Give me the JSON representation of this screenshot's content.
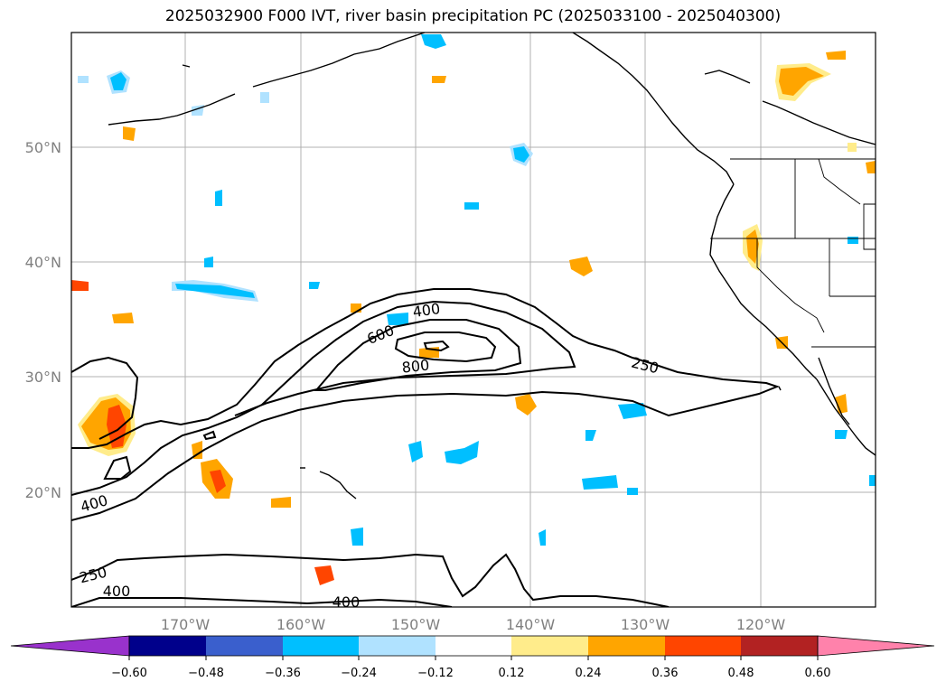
{
  "title": "2025032900 F000 IVT, river basin precipitation PC (2025033100 - 2025040300)",
  "map": {
    "lat_ticks": [
      {
        "label": "50°N",
        "lat": 50
      },
      {
        "label": "40°N",
        "lat": 40
      },
      {
        "label": "30°N",
        "lat": 30
      },
      {
        "label": "20°N",
        "lat": 20
      }
    ],
    "lon_ticks": [
      {
        "label": "170°W",
        "lon": -170
      },
      {
        "label": "160°W",
        "lon": -160
      },
      {
        "label": "150°W",
        "lon": -150
      },
      {
        "label": "140°W",
        "lon": -140
      },
      {
        "label": "130°W",
        "lon": -130
      },
      {
        "label": "120°W",
        "lon": -120
      }
    ],
    "contour_labels": [
      "400",
      "600",
      "800",
      "250",
      "400",
      "250",
      "400",
      "400"
    ]
  },
  "colorbar": {
    "colors": [
      "#9932cc",
      "#00008b",
      "#3a5fcd",
      "#00bfff",
      "#b0e2ff",
      "#ffffff",
      "#ffec8b",
      "#ffa500",
      "#ff4500",
      "#b22222",
      "#ff82ab"
    ],
    "tick_labels": [
      "−0.60",
      "−0.48",
      "−0.36",
      "−0.24",
      "−0.12",
      "0.12",
      "0.24",
      "0.36",
      "0.48",
      "0.60"
    ]
  }
}
